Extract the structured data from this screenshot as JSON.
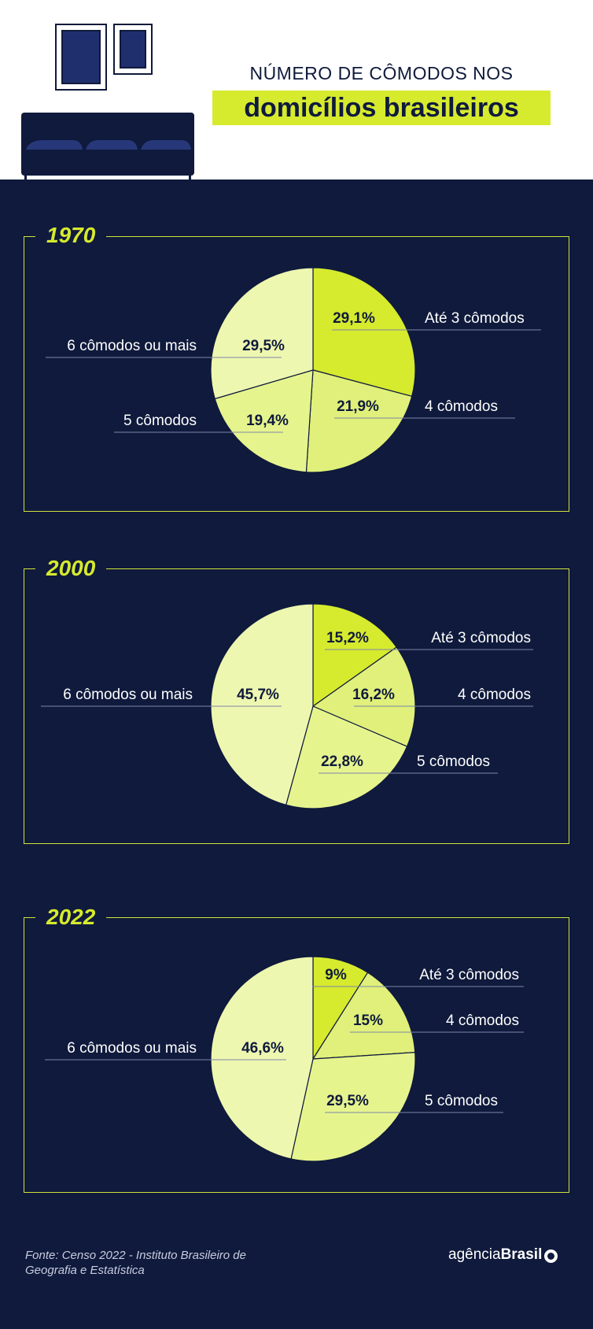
{
  "header": {
    "title_line1": "NÚMERO DE CÔMODOS NOS",
    "title_line2": "domicílios brasileiros"
  },
  "colors": {
    "background": "#0f1a3c",
    "accent": "#d6ea2e",
    "slice_colors": [
      "#d6ea2e",
      "#e0f07a",
      "#e6f48e",
      "#eef7b0"
    ]
  },
  "chart_data": [
    {
      "type": "pie",
      "title": "1970",
      "categories": [
        "Até 3 cômodos",
        "4 cômodos",
        "5 cômodos",
        "6 cômodos ou mais"
      ],
      "values": [
        29.1,
        21.9,
        19.4,
        29.5
      ],
      "value_labels": [
        "29,1%",
        "21,9%",
        "19,4%",
        "29,5%"
      ]
    },
    {
      "type": "pie",
      "title": "2000",
      "categories": [
        "Até 3 cômodos",
        "4 cômodos",
        "5 cômodos",
        "6 cômodos ou mais"
      ],
      "values": [
        15.2,
        16.2,
        22.8,
        45.7
      ],
      "value_labels": [
        "15,2%",
        "16,2%",
        "22,8%",
        "45,7%"
      ]
    },
    {
      "type": "pie",
      "title": "2022",
      "categories": [
        "Até 3 cômodos",
        "4 cômodos",
        "5 cômodos",
        "6 cômodos ou mais"
      ],
      "values": [
        9,
        15,
        29.5,
        46.6
      ],
      "value_labels": [
        "9%",
        "15%",
        "29,5%",
        "46,6%"
      ]
    }
  ],
  "footer": {
    "source_line1": "Fonte:  Censo 2022 - Instituto Brasileiro de",
    "source_line2": "Geografia e Estatística",
    "logo_light": "agência",
    "logo_bold": "Brasil"
  }
}
